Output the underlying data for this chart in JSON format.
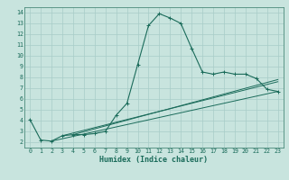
{
  "xlabel": "Humidex (Indice chaleur)",
  "bg_color": "#c8e4de",
  "line_color": "#1a6b5a",
  "grid_color": "#a8ccc8",
  "axis_color": "#4a8a7a",
  "xlim": [
    -0.5,
    23.5
  ],
  "ylim": [
    1.5,
    14.5
  ],
  "xticks": [
    0,
    1,
    2,
    3,
    4,
    5,
    6,
    7,
    8,
    9,
    10,
    11,
    12,
    13,
    14,
    15,
    16,
    17,
    18,
    19,
    20,
    21,
    22,
    23
  ],
  "yticks": [
    2,
    3,
    4,
    5,
    6,
    7,
    8,
    9,
    10,
    11,
    12,
    13,
    14
  ],
  "line1_x": [
    0,
    1,
    2,
    3,
    4,
    5,
    6,
    7,
    8,
    9,
    10,
    11,
    12,
    13,
    14,
    15,
    16,
    17,
    18,
    19,
    20,
    21,
    22,
    23
  ],
  "line1_y": [
    4.1,
    2.2,
    2.1,
    2.6,
    2.7,
    2.7,
    2.8,
    3.0,
    4.5,
    5.6,
    9.2,
    12.8,
    13.9,
    13.5,
    13.0,
    10.7,
    8.5,
    8.3,
    8.5,
    8.3,
    8.3,
    7.9,
    6.9,
    6.7
  ],
  "line2_x": [
    2,
    23
  ],
  "line2_y": [
    2.1,
    6.7
  ],
  "line3_x": [
    3,
    23
  ],
  "line3_y": [
    2.6,
    7.6
  ],
  "line4_x": [
    4,
    23
  ],
  "line4_y": [
    2.7,
    7.8
  ],
  "label_fontsize": 5.0,
  "tick_fontsize": 4.8
}
